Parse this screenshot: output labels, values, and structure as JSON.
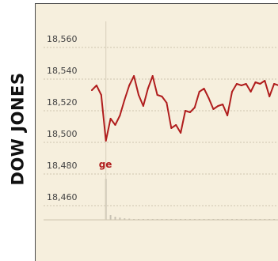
{
  "side_label": "DOW JONES",
  "chart_data": {
    "type": "line",
    "title": "",
    "xlabel": "",
    "ylabel": "",
    "ylim": [
      18452,
      18568
    ],
    "yticks": [
      18560,
      18540,
      18520,
      18500,
      18480,
      18460
    ],
    "ytick_labels": [
      "18,560",
      "18,540",
      "18,520",
      "18,500",
      "18,480",
      "18,460"
    ],
    "grid": true,
    "colors": {
      "line": "#b01d1d",
      "grid": "#cfc6b0",
      "volume": "#c8c2b4",
      "panel": "#f6efdd"
    },
    "annotation": {
      "text": "ge",
      "index": 3
    },
    "series": [
      {
        "values": [
          18533,
          18536,
          18530,
          18501,
          18515,
          18511,
          18517,
          18527,
          18536,
          18542,
          18530,
          18523,
          18534,
          18542,
          18530,
          18529,
          18525,
          18509,
          18511,
          18506,
          18520,
          18519,
          18522,
          18532,
          18534,
          18528,
          18521,
          18523,
          18524,
          18517,
          18532,
          18537,
          18536,
          18537,
          18532,
          18538,
          18537,
          18539,
          18529,
          18537,
          18536
        ]
      }
    ],
    "volume": [
      0,
      0,
      0,
      5.2,
      0.6,
      0.4,
      0.3,
      0.2,
      0.15,
      0.1,
      0.1,
      0.1,
      0.1,
      0.1,
      0.1,
      0.1,
      0.1,
      0.1,
      0.1,
      0.1,
      0.1,
      0.1,
      0.1,
      0.1,
      0.1,
      0.1,
      0.1,
      0.1,
      0.1,
      0.1,
      0.1,
      0.1,
      0.1,
      0.1,
      0.1,
      0.1,
      0.1,
      0.1,
      0.1,
      0.1,
      0.1
    ]
  }
}
